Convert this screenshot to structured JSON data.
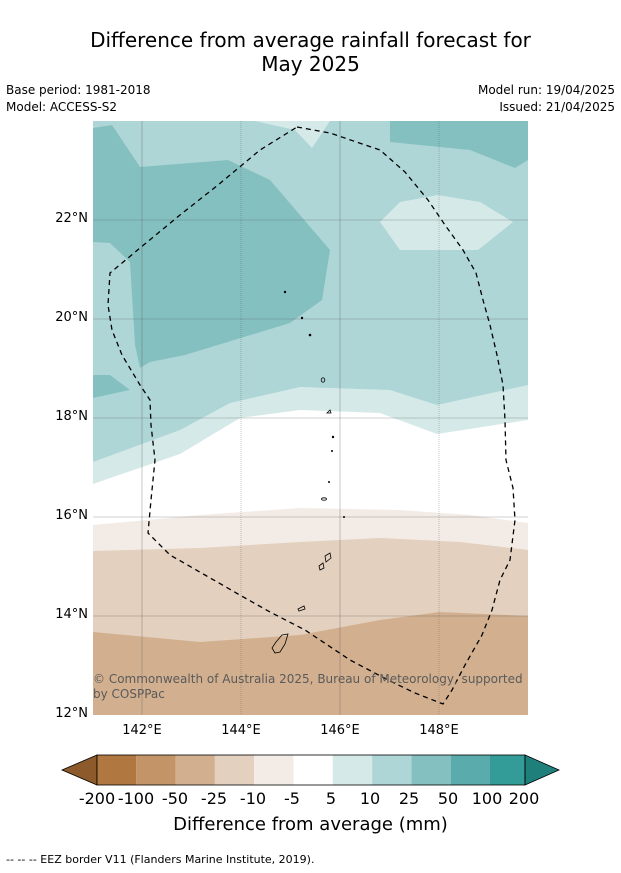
{
  "title_line1": "Difference from average rainfall forecast for",
  "title_line2": "May 2025",
  "meta_left": {
    "base_period": "Base period: 1981-2018",
    "model": "Model: ACCESS-S2"
  },
  "meta_right": {
    "model_run": "Model run: 19/04/2025",
    "issued": "Issued: 21/04/2025"
  },
  "latitude_labels": [
    "22°N",
    "20°N",
    "18°N",
    "16°N",
    "14°N",
    "12°N"
  ],
  "longitude_labels": [
    "142°E",
    "144°E",
    "146°E",
    "148°E"
  ],
  "copyright": "© Commonwealth of Australia 2025, Bureau of Meteorology, supported by COSPPac",
  "colorbar": {
    "ticks": [
      "-200",
      "-100",
      "-50",
      "-25",
      "-10",
      "-5",
      "5",
      "10",
      "25",
      "50",
      "100",
      "200"
    ],
    "colors": [
      "#8c5a2b",
      "#b07840",
      "#c39468",
      "#d2b08f",
      "#e3d0be",
      "#f3ece6",
      "#ffffff",
      "#d5eae8",
      "#aed6d6",
      "#85c0c0",
      "#5aabab",
      "#339c98",
      "#1f7f7b"
    ],
    "label": "Difference from average (mm)"
  },
  "footnote": "--  --  -- EEZ border V11 (Flanders Marine Institute, 2019)."
}
